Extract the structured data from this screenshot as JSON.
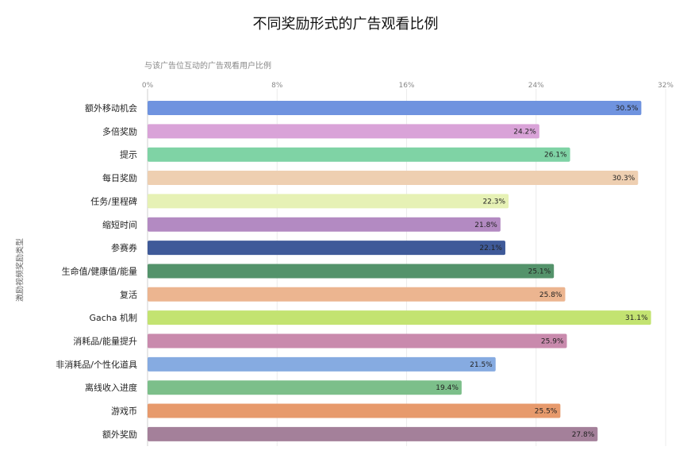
{
  "chart_data": {
    "type": "bar",
    "orientation": "horizontal",
    "title": "不同奖励形式的广告观看比例",
    "subtitle": "与该广告位互动的广告观看用户比例",
    "ylabel": "激励视频奖励类型",
    "xlim": [
      0,
      32
    ],
    "x_ticks": [
      "0%",
      "8%",
      "16%",
      "24%",
      "32%"
    ],
    "grid": true,
    "categories": [
      "额外移动机会",
      "多倍奖励",
      "提示",
      "每日奖励",
      "任务/里程碑",
      "缩短时间",
      "参赛券",
      "生命值/健康值/能量",
      "复活",
      "Gacha 机制",
      "消耗品/能量提升",
      "非消耗品/个性化道具",
      "离线收入进度",
      "游戏币",
      "额外奖励"
    ],
    "values": [
      30.5,
      24.2,
      26.1,
      30.3,
      22.3,
      21.8,
      22.1,
      25.1,
      25.8,
      31.1,
      25.9,
      21.5,
      19.4,
      25.5,
      27.8
    ],
    "value_labels": [
      "30.5%",
      "24.2%",
      "26.1%",
      "30.3%",
      "22.3%",
      "21.8%",
      "22.1%",
      "25.1%",
      "25.8%",
      "31.1%",
      "25.9%",
      "21.5%",
      "19.4%",
      "25.5%",
      "27.8%"
    ],
    "colors": [
      "#6f93df",
      "#d9a3d8",
      "#7fd3a5",
      "#eecfb1",
      "#e6f1b5",
      "#b38ac2",
      "#3f5a99",
      "#54936b",
      "#ecb590",
      "#c3e371",
      "#c98aad",
      "#86abe1",
      "#7cbf8a",
      "#e79a6c",
      "#a4809a"
    ]
  }
}
